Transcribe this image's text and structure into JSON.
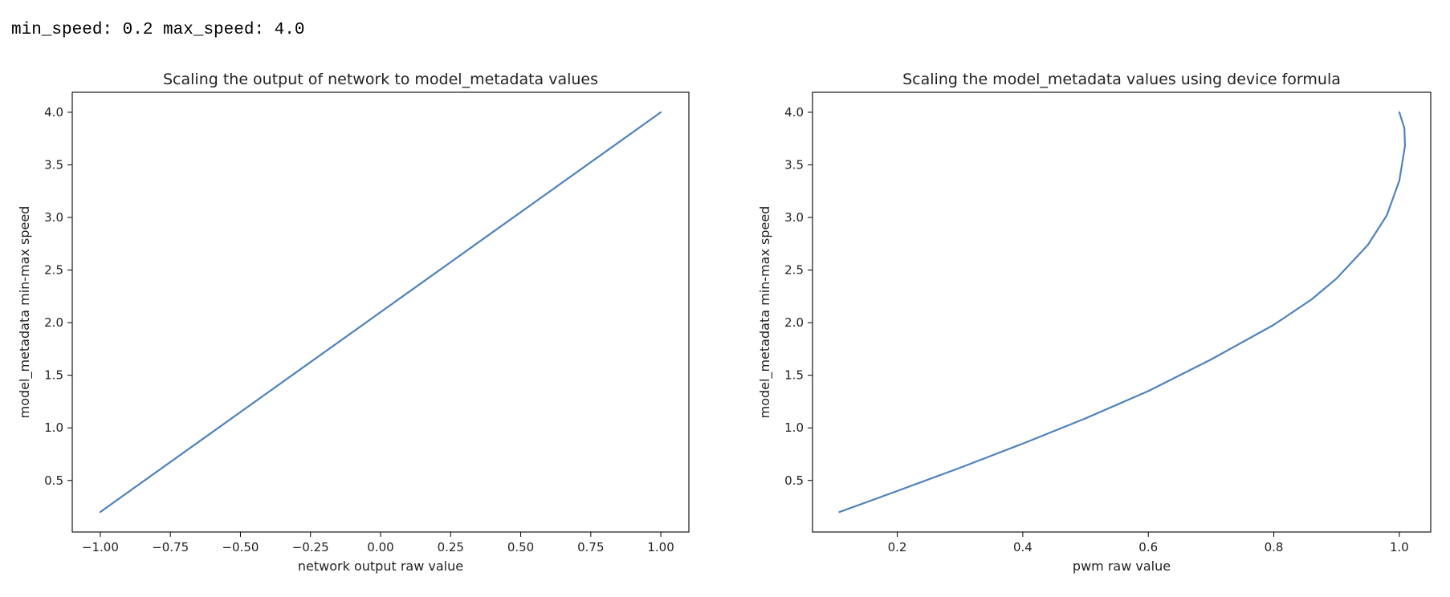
{
  "header": {
    "text": "min_speed: 0.2 max_speed: 4.0"
  },
  "chart_data": [
    {
      "type": "line",
      "title": "Scaling the output of network to model_metadata values",
      "xlabel": "network output raw value",
      "ylabel": "model_metadata min-max speed",
      "xlim": [
        -1.1,
        1.1
      ],
      "ylim": [
        0.01,
        4.19
      ],
      "xticks": [
        -1.0,
        -0.75,
        -0.5,
        -0.25,
        0.0,
        0.25,
        0.5,
        0.75,
        1.0
      ],
      "xtick_labels": [
        "−1.00",
        "−0.75",
        "−0.50",
        "−0.25",
        "0.00",
        "0.25",
        "0.50",
        "0.75",
        "1.00"
      ],
      "yticks": [
        0.5,
        1.0,
        1.5,
        2.0,
        2.5,
        3.0,
        3.5,
        4.0
      ],
      "ytick_labels": [
        "0.5",
        "1.0",
        "1.5",
        "2.0",
        "2.5",
        "3.0",
        "3.5",
        "4.0"
      ],
      "grid": false,
      "series": [
        {
          "color": "#4f81bd",
          "x": [
            -1.0,
            1.0
          ],
          "y": [
            0.2,
            4.0
          ]
        }
      ]
    },
    {
      "type": "line",
      "title": "Scaling the model_metadata values using device formula",
      "xlabel": "pwm raw value",
      "ylabel": "model_metadata min-max speed",
      "xlim": [
        0.065,
        1.05
      ],
      "ylim": [
        0.01,
        4.19
      ],
      "xticks": [
        0.2,
        0.4,
        0.6,
        0.8,
        1.0
      ],
      "xtick_labels": [
        "0.2",
        "0.4",
        "0.6",
        "0.8",
        "1.0"
      ],
      "yticks": [
        0.5,
        1.0,
        1.5,
        2.0,
        2.5,
        3.0,
        3.5,
        4.0
      ],
      "ytick_labels": [
        "0.5",
        "1.0",
        "1.5",
        "2.0",
        "2.5",
        "3.0",
        "3.5",
        "4.0"
      ],
      "grid": false,
      "series": [
        {
          "color": "#4f81bd",
          "x": [
            0.108,
            0.2,
            0.3,
            0.4,
            0.5,
            0.6,
            0.7,
            0.8,
            0.86,
            0.9,
            0.95,
            0.98,
            1.0,
            1.009,
            1.008,
            1.0
          ],
          "y": [
            0.2,
            0.4,
            0.62,
            0.85,
            1.09,
            1.35,
            1.65,
            1.98,
            2.22,
            2.42,
            2.74,
            3.02,
            3.35,
            3.68,
            3.85,
            4.0
          ]
        }
      ]
    }
  ]
}
